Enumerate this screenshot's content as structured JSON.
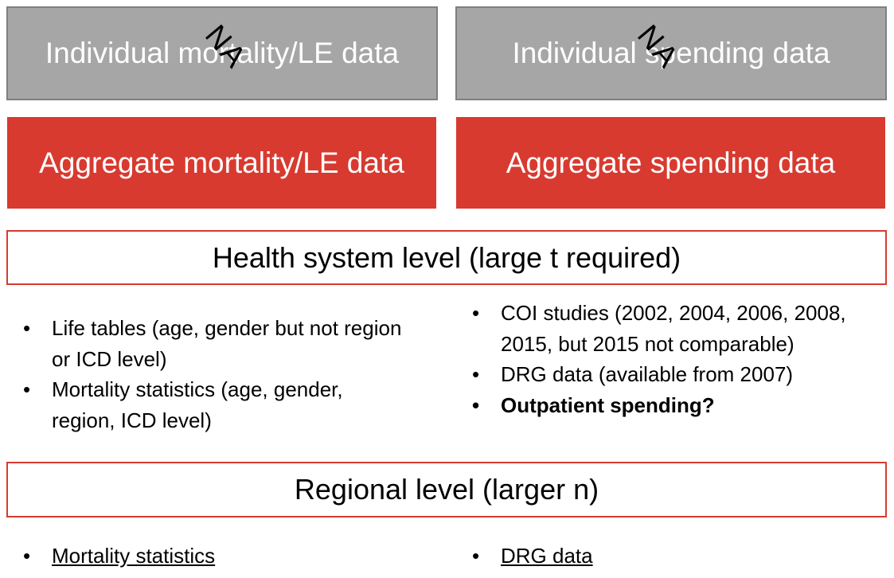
{
  "top_boxes": {
    "individual_mortality": "Individual mortality/LE data",
    "individual_spending": "Individual spending data",
    "na_mark": "NA",
    "aggregate_mortality": "Aggregate mortality/LE data",
    "aggregate_spending": "Aggregate spending data"
  },
  "health_system": {
    "title": "Health system level (large t required)",
    "left_bullets": [
      "Life tables (age, gender but not region or ICD level)",
      "Mortality statistics (age, gender, region, ICD level)"
    ],
    "right_bullets": [
      "COI studies (2002, 2004, 2006, 2008, 2015, but 2015 not comparable)",
      "DRG data (available from 2007)",
      "Outpatient spending?"
    ]
  },
  "regional": {
    "title": "Regional level (larger n)",
    "left_bullets": [
      "Mortality statistics"
    ],
    "right_bullets": [
      "DRG data"
    ]
  },
  "colors": {
    "grey_fill": "#a6a6a6",
    "red_accent": "#d83a30"
  }
}
